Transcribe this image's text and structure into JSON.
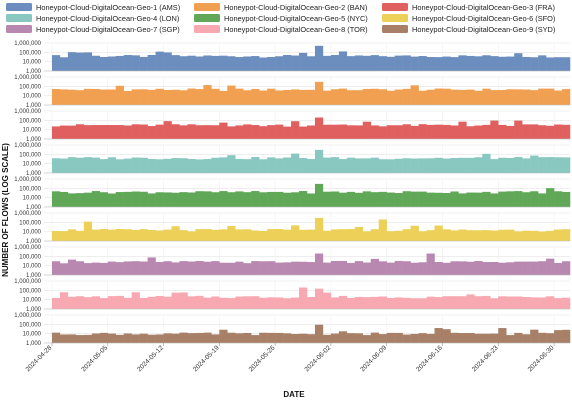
{
  "chart_data": {
    "type": "bar",
    "xlabel": "DATE",
    "ylabel": "NUMBER OF FLOWS (LOG SCALE)",
    "y_scale": "log",
    "ylim": [
      1000,
      1000000
    ],
    "y_ticks": [
      1000,
      10000,
      100000,
      1000000
    ],
    "y_tick_labels": [
      "1,000",
      "10,000",
      "100,000",
      "1,000,000"
    ],
    "x_tick_labels": [
      "2024-04-28",
      "2024-05-05",
      "2024-05-12",
      "2024-05-19",
      "2024-05-26",
      "2024-06-02",
      "2024-06-09",
      "2024-06-16",
      "2024-06-23",
      "2024-06-30"
    ],
    "legend_position": "top",
    "grid": true,
    "series": [
      {
        "name": "Honeypot-Cloud-DigitalOcean-Geo-1 (AMS)",
        "color": "#6c8ebf",
        "base": 40000,
        "spikes": [
          {
            "date": "2024-05-31",
            "value": 500000
          }
        ]
      },
      {
        "name": "Honeypot-Cloud-DigitalOcean-Geo-2 (BAN)",
        "color": "#f0a050",
        "base": 45000,
        "spikes": [
          {
            "date": "2024-05-31",
            "value": 300000
          }
        ]
      },
      {
        "name": "Honeypot-Cloud-DigitalOcean-Geo-3 (FRA)",
        "color": "#e06060",
        "base": 30000,
        "spikes": [
          {
            "date": "2024-05-31",
            "value": 200000
          }
        ]
      },
      {
        "name": "Honeypot-Cloud-DigitalOcean-Geo-4 (LON)",
        "color": "#88c8c0",
        "base": 40000,
        "spikes": [
          {
            "date": "2024-05-31",
            "value": 300000
          }
        ]
      },
      {
        "name": "Honeypot-Cloud-DigitalOcean-Geo-5 (NYC)",
        "color": "#60a858",
        "base": 40000,
        "spikes": [
          {
            "date": "2024-05-31",
            "value": 300000
          }
        ]
      },
      {
        "name": "Honeypot-Cloud-DigitalOcean-Geo-6 (SFO)",
        "color": "#ecd058",
        "base": 15000,
        "spikes": [
          {
            "date": "2024-05-31",
            "value": 300000
          },
          {
            "date": "2024-05-02",
            "value": 120000
          },
          {
            "date": "2024-06-08",
            "value": 200000
          }
        ]
      },
      {
        "name": "Honeypot-Cloud-DigitalOcean-Geo-7 (SGP)",
        "color": "#b888b0",
        "base": 25000,
        "spikes": [
          {
            "date": "2024-05-31",
            "value": 200000
          },
          {
            "date": "2024-06-14",
            "value": 200000
          }
        ]
      },
      {
        "name": "Honeypot-Cloud-DigitalOcean-Geo-8 (TOR)",
        "color": "#f8a8b0",
        "base": 20000,
        "spikes": [
          {
            "date": "2024-05-29",
            "value": 200000
          },
          {
            "date": "2024-05-31",
            "value": 150000
          }
        ]
      },
      {
        "name": "Honeypot-Cloud-DigitalOcean-Geo-9 (SYD)",
        "color": "#a88068",
        "base": 10000,
        "spikes": [
          {
            "date": "2024-05-31",
            "value": 90000
          },
          {
            "date": "2024-06-15",
            "value": 40000
          },
          {
            "date": "2024-06-23",
            "value": 40000
          }
        ]
      }
    ]
  }
}
